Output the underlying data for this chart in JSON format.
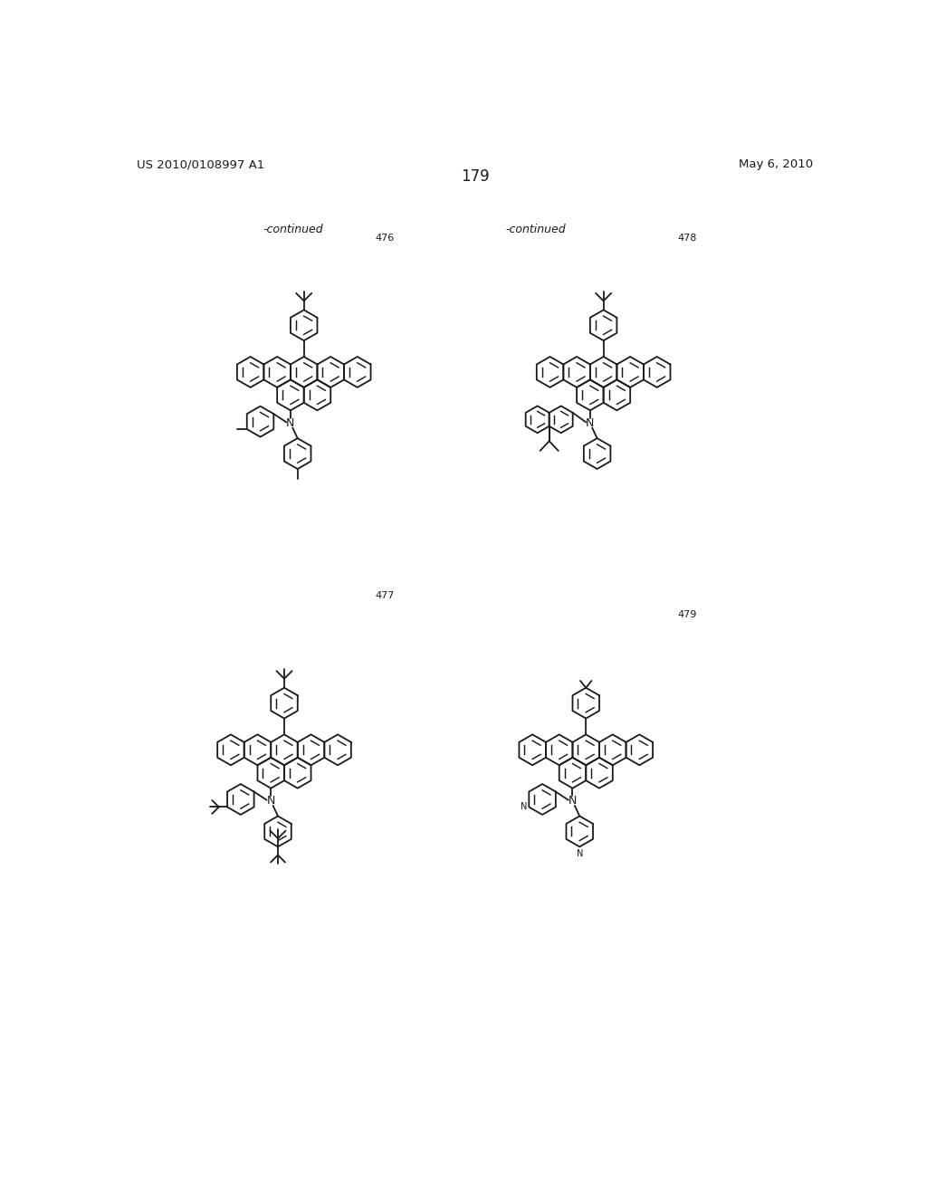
{
  "patent_number": "US 2010/0108997 A1",
  "patent_date": "May 6, 2010",
  "page_number": "179",
  "bg": "#ffffff",
  "lc": "#1a1a1a",
  "ring_r": 22,
  "lw": 1.3
}
